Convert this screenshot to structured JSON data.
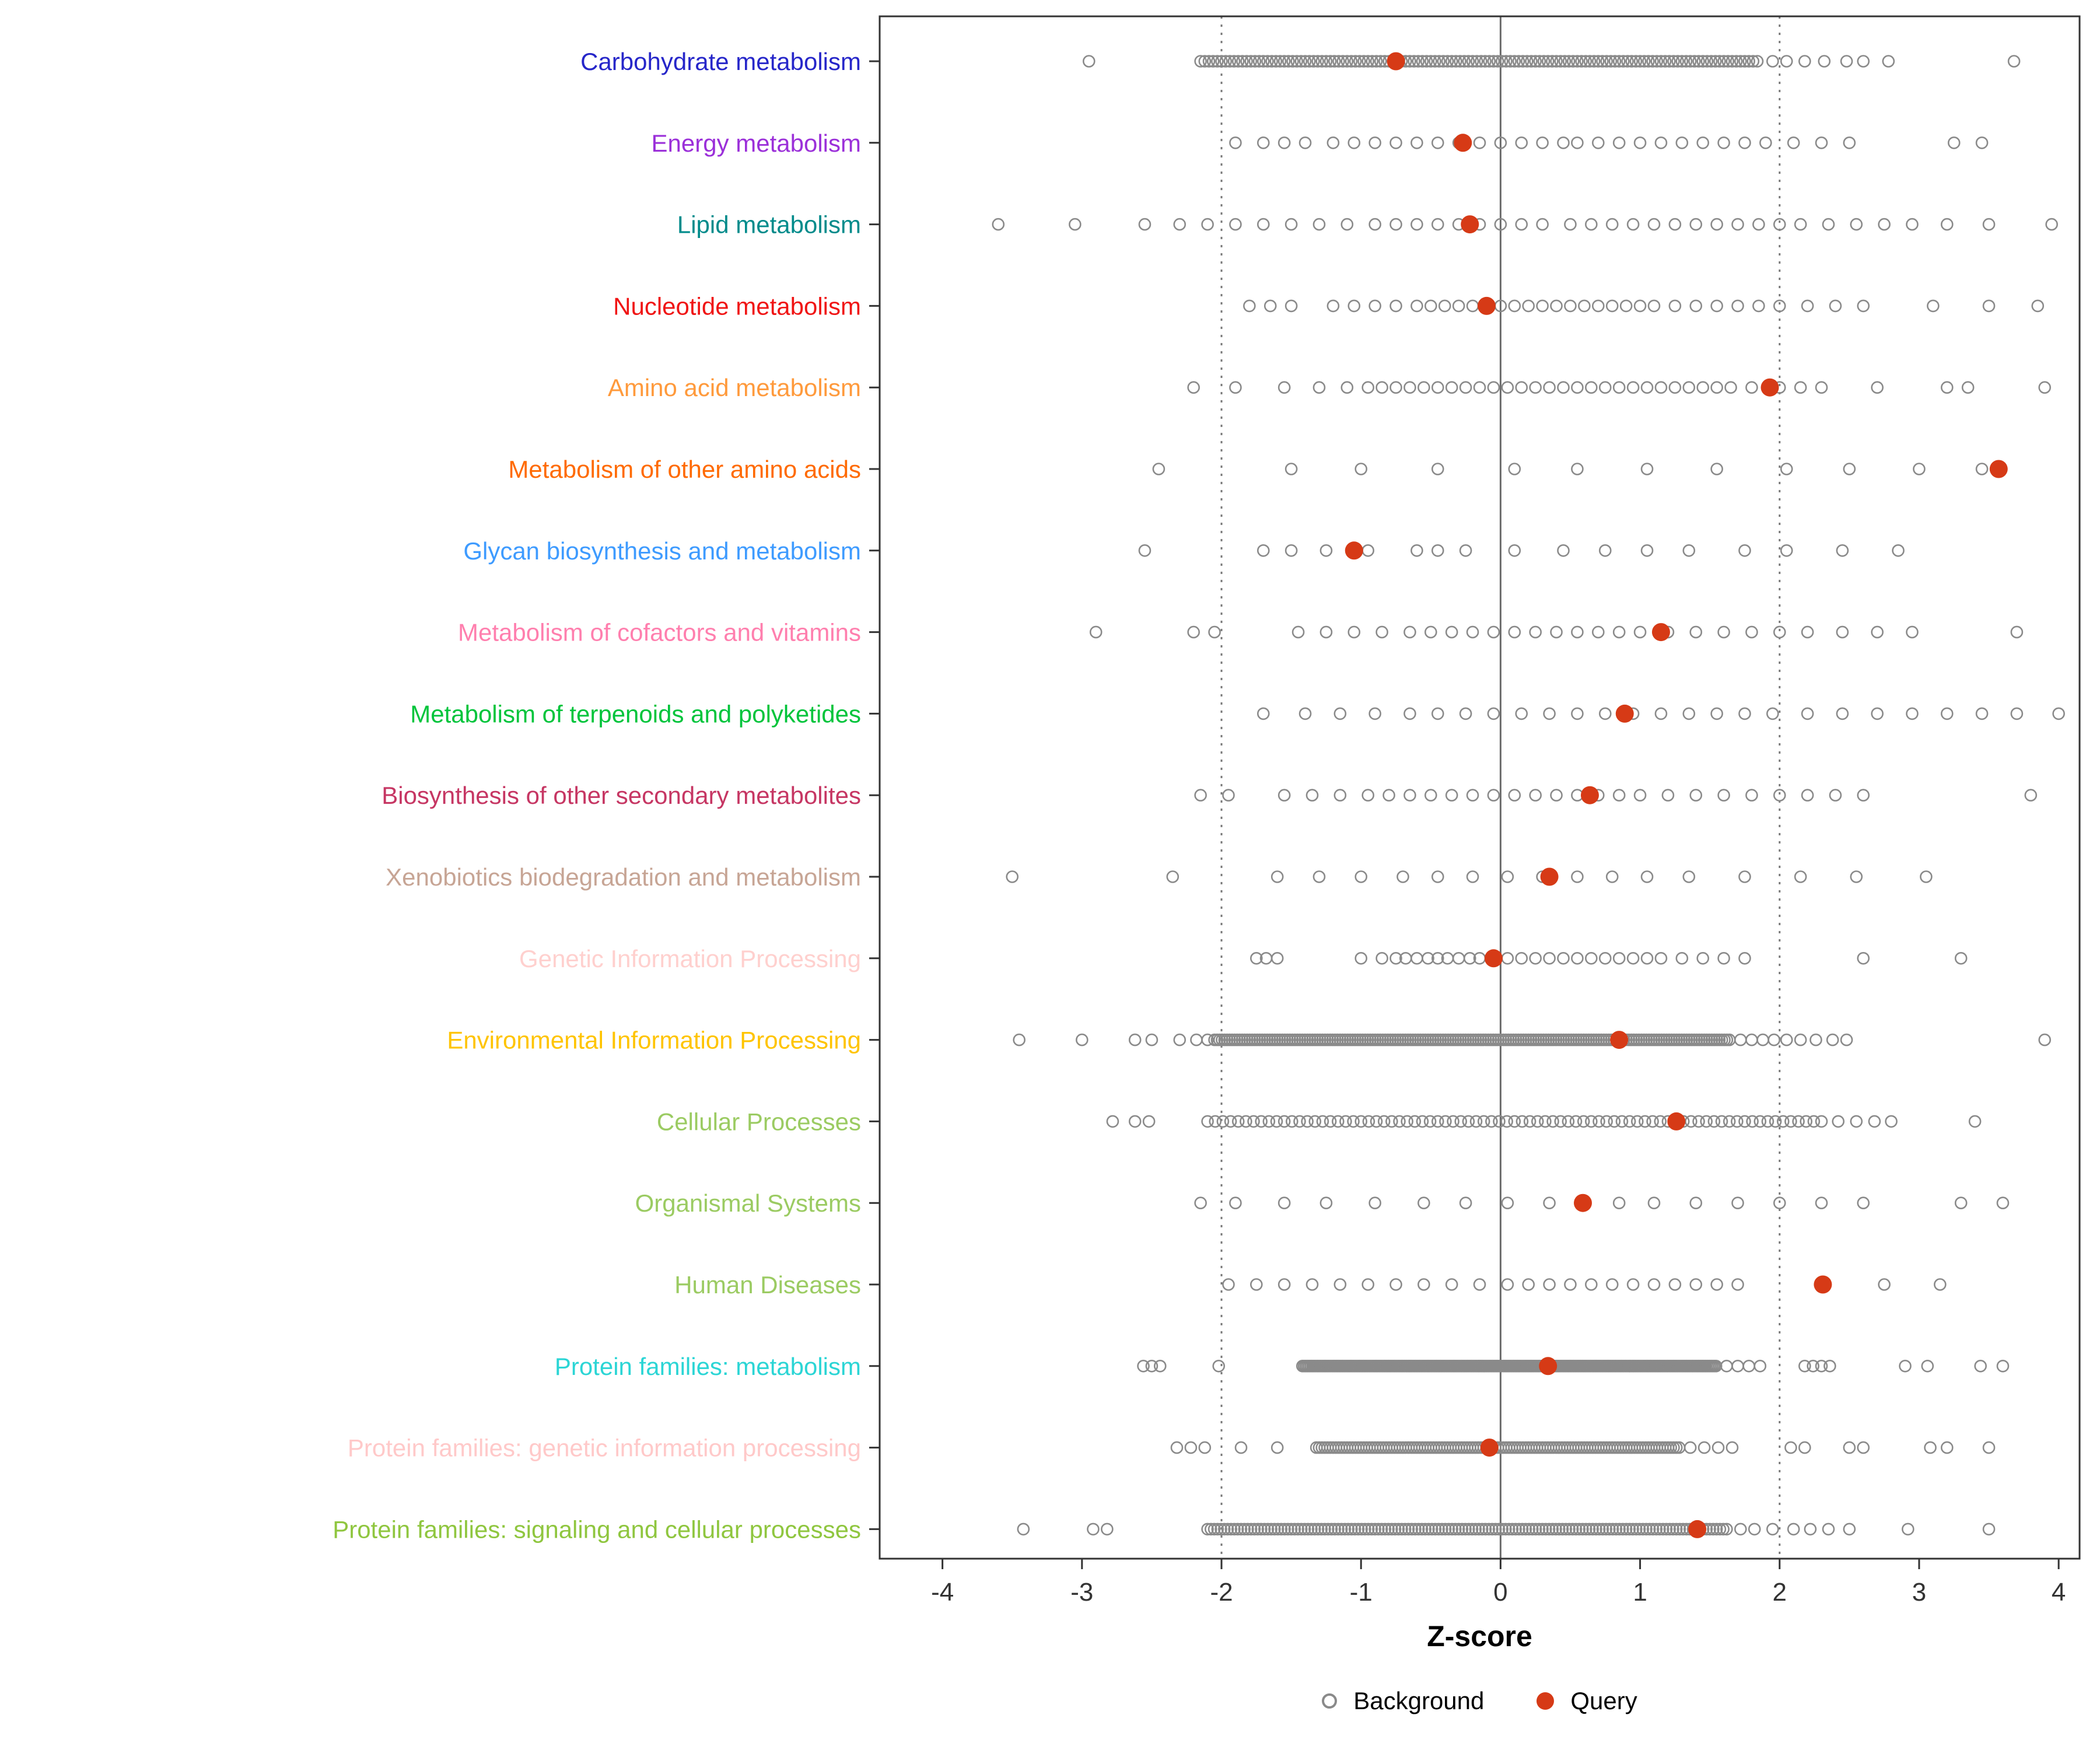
{
  "chart_data": {
    "type": "scatter",
    "title": "",
    "xlabel": "Z-score",
    "ylabel": "",
    "xlim": [
      -4.45,
      4.15
    ],
    "xticks": [
      -4,
      -3,
      -2,
      -1,
      0,
      1,
      2,
      3,
      4
    ],
    "reference_lines": {
      "solid": [
        0
      ],
      "dotted": [
        -2,
        2
      ]
    },
    "grid": false,
    "legend_position": "bottom",
    "legend": [
      {
        "label": "Background",
        "type": "open",
        "color": "#8a8a8a"
      },
      {
        "label": "Query",
        "type": "filled",
        "color": "#d63a16"
      }
    ],
    "style": {
      "background_color": "#8a8a8a",
      "query_color": "#d63a16",
      "axis_color": "#333333",
      "refline_color": "#7a7a7a"
    },
    "categories": [
      {
        "label": "Carbohydrate metabolism",
        "color": "#2626c9",
        "query": -0.75,
        "background_dense": {
          "from": -2.15,
          "to": 1.85,
          "step": 0.03
        },
        "background": [
          -2.95,
          1.95,
          2.05,
          2.18,
          2.32,
          2.48,
          2.6,
          2.78,
          3.68
        ]
      },
      {
        "label": "Energy metabolism",
        "color": "#9b30d9",
        "query": -0.27,
        "background": [
          -1.9,
          -1.7,
          -1.55,
          -1.4,
          -1.2,
          -1.05,
          -0.9,
          -0.75,
          -0.6,
          -0.45,
          -0.3,
          -0.15,
          0.0,
          0.15,
          0.3,
          0.45,
          0.55,
          0.7,
          0.85,
          1.0,
          1.15,
          1.3,
          1.45,
          1.6,
          1.75,
          1.9,
          2.1,
          2.3,
          2.5,
          3.25,
          3.45
        ]
      },
      {
        "label": "Lipid metabolism",
        "color": "#008b8b",
        "query": -0.22,
        "background": [
          -3.6,
          -3.05,
          -2.55,
          -2.3,
          -2.1,
          -1.9,
          -1.7,
          -1.5,
          -1.3,
          -1.1,
          -0.9,
          -0.75,
          -0.6,
          -0.45,
          -0.3,
          -0.15,
          0.0,
          0.15,
          0.3,
          0.5,
          0.65,
          0.8,
          0.95,
          1.1,
          1.25,
          1.4,
          1.55,
          1.7,
          1.85,
          2.0,
          2.15,
          2.35,
          2.55,
          2.75,
          2.95,
          3.2,
          3.5,
          3.95
        ]
      },
      {
        "label": "Nucleotide metabolism",
        "color": "#f01414",
        "query": -0.1,
        "background": [
          -1.8,
          -1.65,
          -1.5,
          -1.2,
          -1.05,
          -0.9,
          -0.75,
          -0.6,
          -0.5,
          -0.4,
          -0.3,
          -0.2,
          -0.1,
          0.0,
          0.1,
          0.2,
          0.3,
          0.4,
          0.5,
          0.6,
          0.7,
          0.8,
          0.9,
          1.0,
          1.1,
          1.25,
          1.4,
          1.55,
          1.7,
          1.85,
          2.0,
          2.2,
          2.4,
          2.6,
          3.1,
          3.5,
          3.85
        ]
      },
      {
        "label": "Amino acid metabolism",
        "color": "#ff9a3c",
        "query": 1.93,
        "background": [
          -2.2,
          -1.9,
          -1.55,
          -1.3,
          -1.1,
          -0.95,
          -0.85,
          -0.75,
          -0.65,
          -0.55,
          -0.45,
          -0.35,
          -0.25,
          -0.15,
          -0.05,
          0.05,
          0.15,
          0.25,
          0.35,
          0.45,
          0.55,
          0.65,
          0.75,
          0.85,
          0.95,
          1.05,
          1.15,
          1.25,
          1.35,
          1.45,
          1.55,
          1.65,
          1.8,
          2.0,
          2.15,
          2.3,
          2.7,
          3.2,
          3.35,
          3.9
        ]
      },
      {
        "label": "Metabolism of other amino acids",
        "color": "#ff6a00",
        "query": 3.57,
        "background": [
          -2.45,
          -1.5,
          -1.0,
          -0.45,
          0.1,
          0.55,
          1.05,
          1.55,
          2.05,
          2.5,
          3.0,
          3.45
        ]
      },
      {
        "label": "Glycan biosynthesis and metabolism",
        "color": "#3e9bff",
        "query": -1.05,
        "background": [
          -2.55,
          -1.7,
          -1.5,
          -1.25,
          -0.95,
          -0.6,
          -0.45,
          -0.25,
          0.1,
          0.45,
          0.75,
          1.05,
          1.35,
          1.75,
          2.05,
          2.45,
          2.85
        ]
      },
      {
        "label": "Metabolism of cofactors and vitamins",
        "color": "#ff7fae",
        "query": 1.15,
        "background": [
          -2.9,
          -2.2,
          -2.05,
          -1.45,
          -1.25,
          -1.05,
          -0.85,
          -0.65,
          -0.5,
          -0.35,
          -0.2,
          -0.05,
          0.1,
          0.25,
          0.4,
          0.55,
          0.7,
          0.85,
          1.0,
          1.2,
          1.4,
          1.6,
          1.8,
          2.0,
          2.2,
          2.45,
          2.7,
          2.95,
          3.7
        ]
      },
      {
        "label": "Metabolism of terpenoids and polyketides",
        "color": "#00c43b",
        "query": 0.89,
        "background": [
          -1.7,
          -1.4,
          -1.15,
          -0.9,
          -0.65,
          -0.45,
          -0.25,
          -0.05,
          0.15,
          0.35,
          0.55,
          0.75,
          0.95,
          1.15,
          1.35,
          1.55,
          1.75,
          1.95,
          2.2,
          2.45,
          2.7,
          2.95,
          3.2,
          3.45,
          3.7,
          4.0
        ]
      },
      {
        "label": "Biosynthesis of other secondary metabolites",
        "color": "#c63663",
        "query": 0.64,
        "background": [
          -2.15,
          -1.95,
          -1.55,
          -1.35,
          -1.15,
          -0.95,
          -0.8,
          -0.65,
          -0.5,
          -0.35,
          -0.2,
          -0.05,
          0.1,
          0.25,
          0.4,
          0.55,
          0.7,
          0.85,
          1.0,
          1.2,
          1.4,
          1.6,
          1.8,
          2.0,
          2.2,
          2.4,
          2.6,
          3.8
        ]
      },
      {
        "label": "Xenobiotics biodegradation and metabolism",
        "color": "#c7a595",
        "query": 0.35,
        "background": [
          -3.5,
          -2.35,
          -1.6,
          -1.3,
          -1.0,
          -0.7,
          -0.45,
          -0.2,
          0.05,
          0.3,
          0.55,
          0.8,
          1.05,
          1.35,
          1.75,
          2.15,
          2.55,
          3.05
        ]
      },
      {
        "label": "Genetic Information Processing",
        "color": "#ffd0ce",
        "query": -0.05,
        "background": [
          -1.75,
          -1.68,
          -1.6,
          -1.0,
          -0.85,
          -0.75,
          -0.68,
          -0.6,
          -0.52,
          -0.45,
          -0.38,
          -0.3,
          -0.22,
          -0.15,
          -0.05,
          0.05,
          0.15,
          0.25,
          0.35,
          0.45,
          0.55,
          0.65,
          0.75,
          0.85,
          0.95,
          1.05,
          1.15,
          1.3,
          1.45,
          1.6,
          1.75,
          2.6,
          3.3
        ]
      },
      {
        "label": "Environmental Information Processing",
        "color": "#ffc400",
        "query": 0.85,
        "background_dense": {
          "from": -2.05,
          "to": 1.65,
          "step": 0.018
        },
        "background": [
          -3.45,
          -3.0,
          -2.62,
          -2.5,
          -2.3,
          -2.18,
          -2.1,
          1.72,
          1.8,
          1.88,
          1.96,
          2.05,
          2.15,
          2.26,
          2.38,
          2.48,
          3.9
        ]
      },
      {
        "label": "Cellular Processes",
        "color": "#9bcb62",
        "query": 1.26,
        "background_dense": {
          "from": -2.1,
          "to": 2.3,
          "step": 0.055
        },
        "background": [
          -2.78,
          -2.62,
          -2.52,
          2.42,
          2.55,
          2.68,
          2.8,
          3.4
        ]
      },
      {
        "label": "Organismal Systems",
        "color": "#9bcb62",
        "query": 0.59,
        "background": [
          -2.15,
          -1.9,
          -1.55,
          -1.25,
          -0.9,
          -0.55,
          -0.25,
          0.05,
          0.35,
          0.6,
          0.85,
          1.1,
          1.4,
          1.7,
          2.0,
          2.3,
          2.6,
          3.3,
          3.6
        ]
      },
      {
        "label": "Human Diseases",
        "color": "#9bcb62",
        "query": 2.31,
        "background": [
          -1.95,
          -1.75,
          -1.55,
          -1.35,
          -1.15,
          -0.95,
          -0.75,
          -0.55,
          -0.35,
          -0.15,
          0.05,
          0.2,
          0.35,
          0.5,
          0.65,
          0.8,
          0.95,
          1.1,
          1.25,
          1.4,
          1.55,
          1.7,
          2.75,
          3.15
        ]
      },
      {
        "label": "Protein families: metabolism",
        "color": "#2bd5d5",
        "query": 0.34,
        "background_dense": {
          "from": -1.42,
          "to": 1.55,
          "step": 0.012
        },
        "background": [
          -2.56,
          -2.5,
          -2.44,
          -2.02,
          1.62,
          1.7,
          1.78,
          1.86,
          2.18,
          2.24,
          2.3,
          2.36,
          2.9,
          3.06,
          3.44,
          3.6
        ]
      },
      {
        "label": "Protein families: genetic information processing",
        "color": "#ffc9c9",
        "query": -0.08,
        "background_dense": {
          "from": -1.32,
          "to": 1.28,
          "step": 0.02
        },
        "background": [
          -2.32,
          -2.22,
          -2.12,
          -1.86,
          -1.6,
          1.36,
          1.46,
          1.56,
          1.66,
          2.08,
          2.18,
          2.5,
          2.6,
          3.08,
          3.2,
          3.5
        ]
      },
      {
        "label": "Protein families: signaling and cellular processes",
        "color": "#8fc63f",
        "query": 1.41,
        "background_dense": {
          "from": -2.1,
          "to": 1.62,
          "step": 0.024
        },
        "background": [
          -3.42,
          -2.92,
          -2.82,
          1.72,
          1.82,
          1.95,
          2.1,
          2.22,
          2.35,
          2.5,
          2.92,
          3.5
        ]
      }
    ]
  }
}
